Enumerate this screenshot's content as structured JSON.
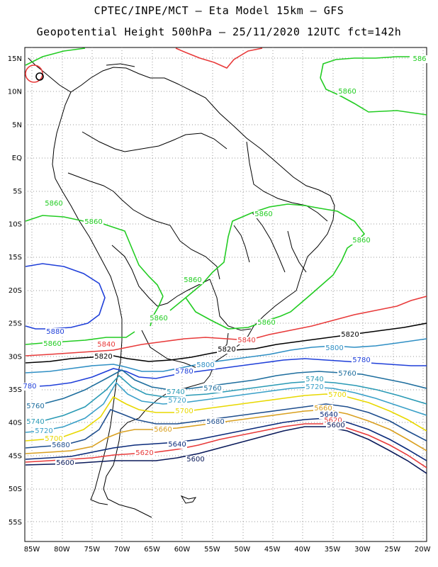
{
  "header": {
    "line1": "CPTEC/INPE/MCT –  Eta Model 15km – GFS",
    "line2": "Geopotential Height 500hPa – 25/11/2020 12UTC fct=142h"
  },
  "axes": {
    "lat_labels": [
      "15N",
      "10N",
      "5N",
      "EQ",
      "5S",
      "10S",
      "15S",
      "20S",
      "25S",
      "30S",
      "35S",
      "40S",
      "45S",
      "50S",
      "55S"
    ],
    "lon_labels": [
      "85W",
      "80W",
      "75W",
      "70W",
      "65W",
      "60W",
      "55W",
      "50W",
      "45W",
      "40W",
      "35W",
      "30W",
      "25W",
      "20W"
    ]
  },
  "contour_labels": [
    {
      "text": "5860",
      "color": "#22cc22"
    },
    {
      "text": "5860",
      "color": "#22cc22"
    },
    {
      "text": "5860",
      "color": "#22cc22"
    },
    {
      "text": "5860",
      "color": "#22cc22"
    },
    {
      "text": "5860",
      "color": "#22cc22"
    },
    {
      "text": "5860",
      "color": "#22cc22"
    },
    {
      "text": "5860",
      "color": "#22cc22"
    },
    {
      "text": "5860",
      "color": "#22cc22"
    },
    {
      "text": "5860",
      "color": "#22cc22"
    },
    {
      "text": "5880",
      "color": "#1f3fd9"
    },
    {
      "text": "5840",
      "color": "#e83a3a"
    },
    {
      "text": "5840",
      "color": "#e83a3a"
    },
    {
      "text": "5820",
      "color": "#000000"
    },
    {
      "text": "5820",
      "color": "#000000"
    },
    {
      "text": "5820",
      "color": "#000000"
    },
    {
      "text": "5800",
      "color": "#2f8fc4"
    },
    {
      "text": "5800",
      "color": "#2f8fc4"
    },
    {
      "text": "5780",
      "color": "#1f3fd9"
    },
    {
      "text": "5780",
      "color": "#1f3fd9"
    },
    {
      "text": "780",
      "color": "#1f3fd9"
    },
    {
      "text": "5760",
      "color": "#1e6e9e"
    },
    {
      "text": "5760",
      "color": "#1e6e9e"
    },
    {
      "text": "5760",
      "color": "#1e6e9e"
    },
    {
      "text": "5740",
      "color": "#2a9ab5"
    },
    {
      "text": "5740",
      "color": "#2a9ab5"
    },
    {
      "text": "5740",
      "color": "#2a9ab5"
    },
    {
      "text": "5720",
      "color": "#3aa0c8"
    },
    {
      "text": "5720",
      "color": "#3aa0c8"
    },
    {
      "text": "5720",
      "color": "#3aa0c8"
    },
    {
      "text": "5700",
      "color": "#e8d800"
    },
    {
      "text": "5700",
      "color": "#e8d800"
    },
    {
      "text": "5700",
      "color": "#e8d800"
    },
    {
      "text": "5680",
      "color": "#1e4e8e"
    },
    {
      "text": "5680",
      "color": "#1e4e8e"
    },
    {
      "text": "5660",
      "color": "#d9a020"
    },
    {
      "text": "5660",
      "color": "#d9a020"
    },
    {
      "text": "5640",
      "color": "#0a2a7a"
    },
    {
      "text": "5640",
      "color": "#0a2a7a"
    },
    {
      "text": "5620",
      "color": "#e83a3a"
    },
    {
      "text": "5620",
      "color": "#e83a3a"
    },
    {
      "text": "5600",
      "color": "#0a1a5a"
    },
    {
      "text": "5600",
      "color": "#0a1a5a"
    },
    {
      "text": "5600",
      "color": "#0a1a5a"
    },
    {
      "text": "586",
      "color": "#22cc22"
    }
  ]
}
